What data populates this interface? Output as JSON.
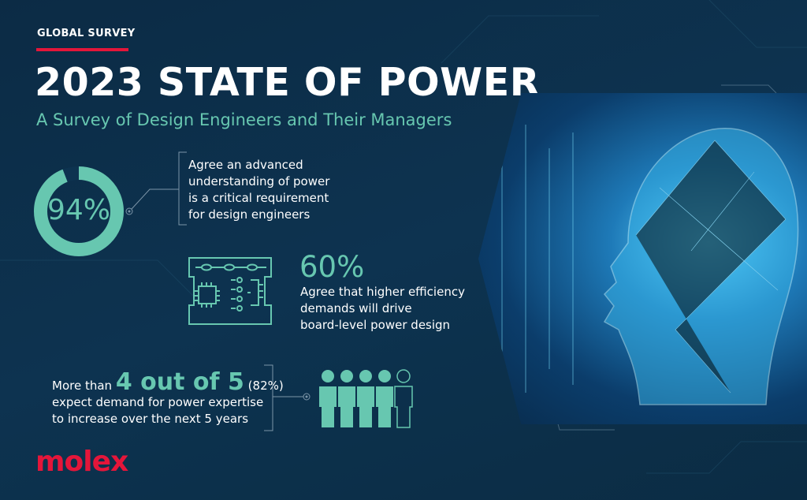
{
  "header": {
    "kicker": "GLOBAL SURVEY",
    "title": "2023 STATE OF POWER",
    "subtitle": "A Survey of Design Engineers and Their Managers"
  },
  "stats": [
    {
      "value": "94%",
      "fraction": 0.94,
      "text": [
        "Agree an advanced",
        "understanding of power",
        "is a critical requirement",
        "for design engineers"
      ]
    },
    {
      "value": "60%",
      "text": [
        "Agree that higher efficiency",
        "demands will drive",
        "board-level power design"
      ]
    },
    {
      "prefix": "More than",
      "value": "4 out of 5",
      "percent": "(82%)",
      "text": [
        "expect demand for power expertise",
        "to increase over the next 5 years"
      ],
      "people_filled": 4,
      "people_total": 5
    }
  ],
  "brand": {
    "logo": "molex"
  },
  "colors": {
    "accent": "#67c7b0",
    "brand_red": "#e4163a",
    "background": "#0c2b45"
  },
  "icons": [
    "donut-chart",
    "circuit-board-icon",
    "people-icon",
    "ai-head-image"
  ]
}
